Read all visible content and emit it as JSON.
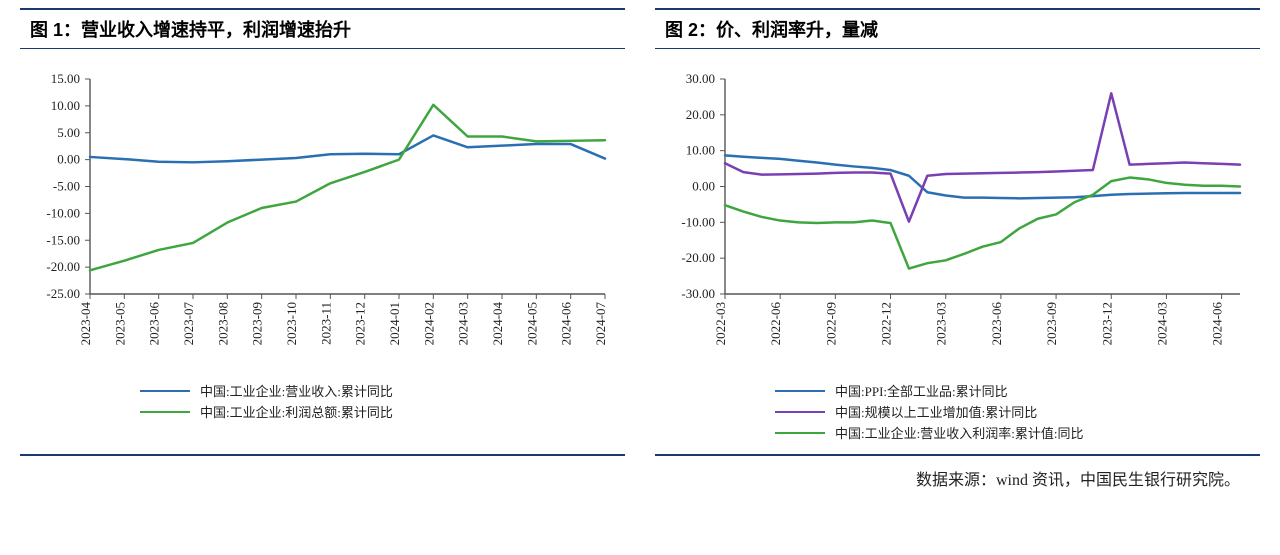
{
  "source": "数据来源：wind 资讯，中国民生银行研究院。",
  "fig1": {
    "title": "图 1：营业收入增速持平，利润增速抬升",
    "type": "line",
    "background_color": "#ffffff",
    "axis_color": "#555555",
    "tick_fontsize": 13,
    "ylim": [
      -25,
      15
    ],
    "ytick_step": 5,
    "yticks": [
      -25,
      -20,
      -15,
      -10,
      -5,
      0,
      5,
      10,
      15
    ],
    "ytick_labels": [
      "-25.00",
      "-20.00",
      "-15.00",
      "-10.00",
      "-5.00",
      "0.00",
      "5.00",
      "10.00",
      "15.00"
    ],
    "xticks": [
      "2023-04",
      "2023-05",
      "2023-06",
      "2023-07",
      "2023-08",
      "2023-09",
      "2023-10",
      "2023-11",
      "2023-12",
      "2024-01",
      "2024-02",
      "2024-03",
      "2024-04",
      "2024-05",
      "2024-06",
      "2024-07"
    ],
    "line_width": 2.5,
    "series": [
      {
        "name": "中国:工业企业:营业收入:累计同比",
        "color": "#2b6fb3",
        "values": [
          0.5,
          0.1,
          -0.4,
          -0.5,
          -0.3,
          0.0,
          0.3,
          1.0,
          1.1,
          1.0,
          4.5,
          2.3,
          2.6,
          2.9,
          2.9,
          0.2
        ]
      },
      {
        "name": "中国:工业企业:利润总额:累计同比",
        "color": "#3fa63f",
        "values": [
          -20.6,
          -18.8,
          -16.8,
          -15.5,
          -11.7,
          -9.0,
          -7.8,
          -4.4,
          -2.3,
          0.0,
          10.2,
          4.3,
          4.3,
          3.4,
          3.5,
          3.6
        ]
      }
    ],
    "legend": [
      {
        "label": "中国:工业企业:营业收入:累计同比",
        "color": "#2b6fb3"
      },
      {
        "label": "中国:工业企业:利润总额:累计同比",
        "color": "#3fa63f"
      }
    ]
  },
  "fig2": {
    "title": "图 2：价、利润率升，量减",
    "type": "line",
    "background_color": "#ffffff",
    "axis_color": "#555555",
    "tick_fontsize": 13,
    "ylim": [
      -30,
      30
    ],
    "ytick_step": 10,
    "yticks": [
      -30,
      -20,
      -10,
      0,
      10,
      20,
      30
    ],
    "ytick_labels": [
      "-30.00",
      "-20.00",
      "-10.00",
      "0.00",
      "10.00",
      "20.00",
      "30.00"
    ],
    "xticks": [
      "2022-03",
      "2022-06",
      "2022-09",
      "2022-12",
      "2023-03",
      "2023-06",
      "2023-09",
      "2023-12",
      "2024-03",
      "2024-06"
    ],
    "n_points_per_tick": 3,
    "line_width": 2.5,
    "series": [
      {
        "name": "中国:PPI:全部工业品:累计同比",
        "color": "#2b6fb3",
        "values": [
          8.7,
          8.3,
          8.0,
          7.7,
          7.2,
          6.7,
          6.1,
          5.6,
          5.2,
          4.6,
          3.0,
          -1.6,
          -2.5,
          -3.1,
          -3.1,
          -3.2,
          -3.3,
          -3.2,
          -3.1,
          -3.0,
          -2.7,
          -2.3,
          -2.1,
          -2.0,
          -1.9,
          -1.8,
          -1.8,
          -1.8,
          -1.8
        ]
      },
      {
        "name": "中国:规模以上工业增加值:累计同比",
        "color": "#7a3fb3",
        "values": [
          6.5,
          4.0,
          3.3,
          3.4,
          3.5,
          3.6,
          3.8,
          3.9,
          3.9,
          3.6,
          -9.8,
          3.0,
          3.5,
          3.6,
          3.7,
          3.8,
          3.9,
          4.0,
          4.2,
          4.4,
          4.6,
          26.0,
          6.1,
          6.3,
          6.5,
          6.7,
          6.5,
          6.3,
          6.1
        ]
      },
      {
        "name": "中国:工业企业:营业收入利润率:累计值:同比",
        "color": "#3fa63f",
        "values": [
          -5.2,
          -7.0,
          -8.5,
          -9.5,
          -10.0,
          -10.2,
          -10.0,
          -10.0,
          -9.5,
          -10.2,
          -22.9,
          -21.4,
          -20.6,
          -18.8,
          -16.8,
          -15.5,
          -11.7,
          -9.0,
          -7.8,
          -4.4,
          -2.3,
          1.5,
          2.5,
          2.0,
          1.0,
          0.5,
          0.2,
          0.2,
          0.0
        ]
      }
    ],
    "legend": [
      {
        "label": "中国:PPI:全部工业品:累计同比",
        "color": "#2b6fb3"
      },
      {
        "label": "中国:规模以上工业增加值:累计同比",
        "color": "#7a3fb3"
      },
      {
        "label": "中国:工业企业:营业收入利润率:累计值:同比",
        "color": "#3fa63f"
      }
    ]
  }
}
